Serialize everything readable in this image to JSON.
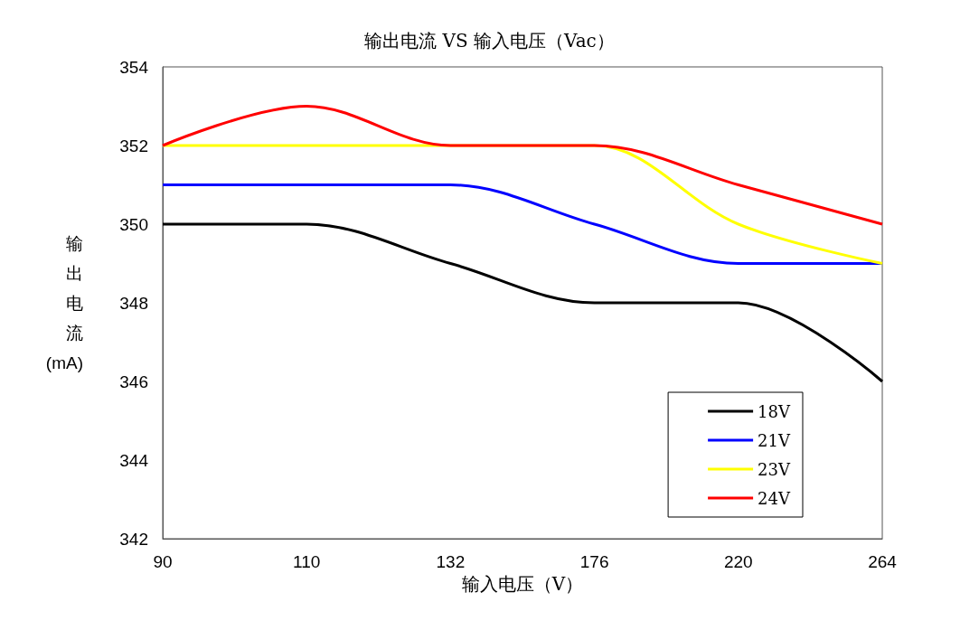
{
  "chart_data": {
    "type": "line",
    "title": "输出电流 VS 输入电压（Vac）",
    "xlabel": "输入电压（V）",
    "ylabel": "输出电流(mA)",
    "categories": [
      "90",
      "110",
      "132",
      "176",
      "220",
      "264"
    ],
    "series": [
      {
        "name": "18V",
        "color": "#000000",
        "values": [
          350,
          350,
          349,
          348,
          348,
          346
        ]
      },
      {
        "name": "21V",
        "color": "#0000ff",
        "values": [
          351,
          351,
          351,
          350,
          349,
          349
        ]
      },
      {
        "name": "23V",
        "color": "#ffff00",
        "values": [
          352,
          352,
          352,
          352,
          350,
          349
        ]
      },
      {
        "name": "24V",
        "color": "#ff0000",
        "values": [
          352,
          353,
          352,
          352,
          351,
          350
        ]
      }
    ],
    "ylim": [
      342,
      354
    ],
    "yticks": [
      342,
      344,
      346,
      348,
      350,
      352,
      354
    ],
    "grid": false,
    "legend": "bottom right",
    "marker": "none",
    "line_style": "solid"
  }
}
